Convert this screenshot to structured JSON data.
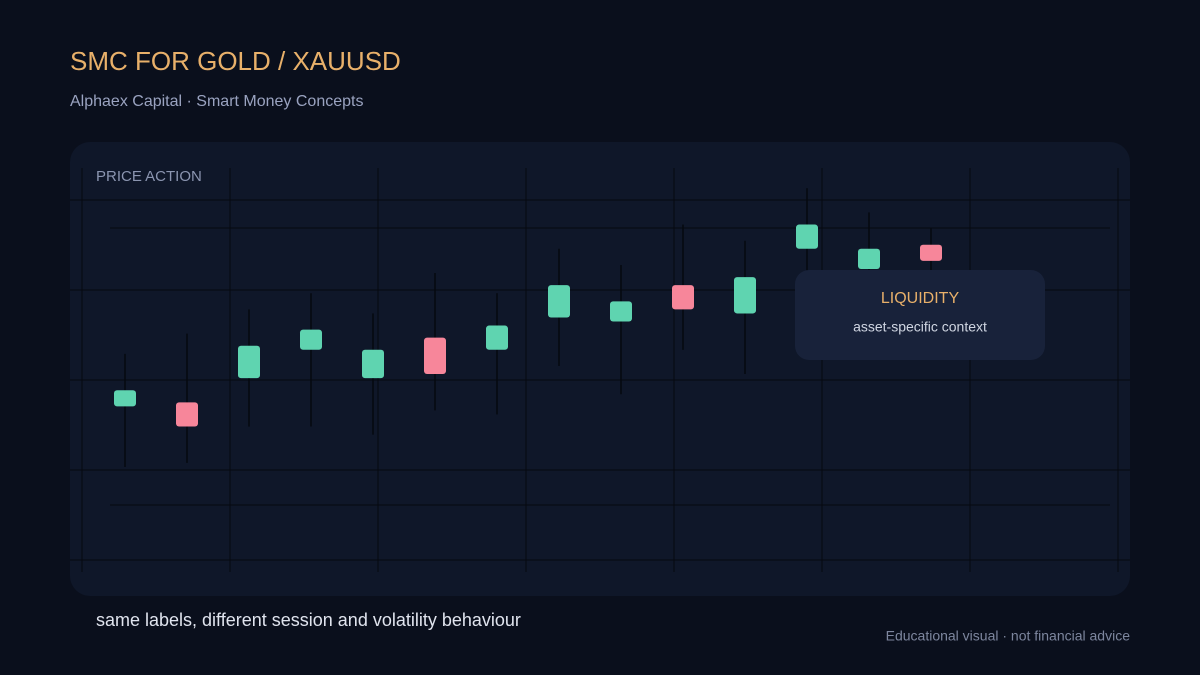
{
  "chart_data": {
    "type": "candlestick",
    "title": "SMC FOR GOLD / XAUUSD",
    "subtitle": "Alphaex Capital · Smart Money Concepts",
    "panel_label": "PRICE ACTION",
    "annotation": {
      "title": "LIQUIDITY",
      "text": "asset-specific context"
    },
    "caption": "same labels, different session and volatility behaviour",
    "footer": "Educational visual · not financial advice",
    "ylim": [
      0,
      100
    ],
    "up_color": "#5fd4b0",
    "down_color": "#f7869a",
    "open": [
      41,
      42,
      48,
      55,
      48,
      58,
      55,
      63,
      62,
      71,
      64,
      80,
      75,
      81
    ],
    "high": [
      54,
      59,
      65,
      69,
      64,
      74,
      69,
      80,
      76,
      86,
      82,
      95,
      89,
      85
    ],
    "low": [
      26,
      27,
      36,
      36,
      34,
      40,
      39,
      51,
      44,
      55,
      49,
      70,
      67,
      72
    ],
    "close": [
      45,
      36,
      56,
      60,
      55,
      49,
      61,
      71,
      67,
      65,
      73,
      86,
      80,
      77
    ]
  }
}
